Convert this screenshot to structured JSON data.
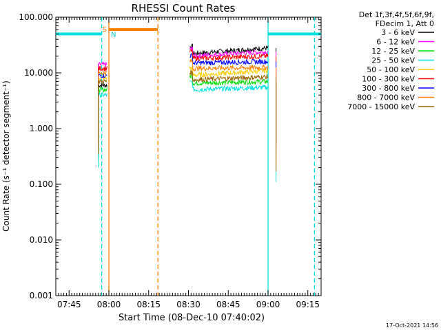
{
  "chart_data": {
    "type": "line",
    "title": "RHESSI Count Rates",
    "xlabel": "Start Time (08-Dec-10 07:40:02)",
    "ylabel": "Count Rate (s⁻¹ detector segment⁻¹)",
    "yscale": "log",
    "ylim": [
      0.001,
      100
    ],
    "xlim_minutes": [
      0,
      100
    ],
    "x_unit": "minutes after 07:40:00",
    "x_ticks": [
      {
        "minute": 5,
        "label": "07:45"
      },
      {
        "minute": 20,
        "label": "08:00"
      },
      {
        "minute": 35,
        "label": "08:15"
      },
      {
        "minute": 50,
        "label": "08:30"
      },
      {
        "minute": 65,
        "label": "08:45"
      },
      {
        "minute": 80,
        "label": "09:00"
      },
      {
        "minute": 95,
        "label": "09:15"
      }
    ],
    "y_ticks": [
      {
        "value": 100,
        "label": "100.000"
      },
      {
        "value": 10,
        "label": "10.000"
      },
      {
        "value": 1,
        "label": "1.000"
      },
      {
        "value": 0.1,
        "label": "0.100"
      },
      {
        "value": 0.01,
        "label": "0.010"
      },
      {
        "value": 0.001,
        "label": "0.001"
      }
    ],
    "legend": {
      "placement": "right",
      "header_lines": [
        "Det 1f,3f,4f,5f,6f,9f,",
        "FDecim 1, Att 0"
      ]
    },
    "series": [
      {
        "name": "3 - 6 keV",
        "color": "#000000",
        "segments": [
          {
            "from": 16.0,
            "to": 19.3,
            "value": 6.0
          },
          {
            "from": 50.5,
            "to": 80.0,
            "value": 22.0,
            "end_value": 28.0
          }
        ]
      },
      {
        "name": "6 - 12 keV",
        "color": "#ff00ff",
        "segments": [
          {
            "from": 16.0,
            "to": 19.3,
            "value": 14.0
          },
          {
            "from": 50.5,
            "to": 80.0,
            "value": 20.0,
            "end_value": 24.0
          }
        ]
      },
      {
        "name": "12 - 25 keV",
        "color": "#00dd00",
        "segments": [
          {
            "from": 16.0,
            "to": 19.3,
            "value": 5.0
          },
          {
            "from": 50.5,
            "to": 80.0,
            "value": 6.5,
            "end_value": 7.0
          }
        ]
      },
      {
        "name": "25 - 50 keV",
        "color": "#00e0e0",
        "segments": [
          {
            "from": 16.0,
            "to": 19.3,
            "value": 4.0
          },
          {
            "from": 50.5,
            "to": 80.0,
            "value": 5.0,
            "end_value": 5.5
          }
        ]
      },
      {
        "name": "50 - 100 keV",
        "color": "#ffcc00",
        "segments": [
          {
            "from": 16.0,
            "to": 19.3,
            "value": 8.0
          },
          {
            "from": 50.5,
            "to": 80.0,
            "value": 9.0,
            "end_value": 11.0
          }
        ]
      },
      {
        "name": "100 - 300 keV",
        "color": "#ff0000",
        "segments": [
          {
            "from": 16.0,
            "to": 19.3,
            "value": 12.0
          },
          {
            "from": 50.5,
            "to": 80.0,
            "value": 18.0,
            "end_value": 20.0
          }
        ]
      },
      {
        "name": "300 - 800 keV",
        "color": "#0000ff",
        "segments": [
          {
            "from": 16.0,
            "to": 19.3,
            "value": 9.0
          },
          {
            "from": 50.5,
            "to": 80.0,
            "value": 15.0,
            "end_value": 16.0
          }
        ]
      },
      {
        "name": "800 - 7000 keV",
        "color": "#ff8000",
        "segments": [
          {
            "from": 16.0,
            "to": 19.3,
            "value": 10.0
          },
          {
            "from": 50.5,
            "to": 80.0,
            "value": 12.0,
            "end_value": 12.5
          }
        ]
      },
      {
        "name": "7000 - 15000 keV",
        "color": "#996600",
        "segments": [
          {
            "from": 16.0,
            "to": 19.3,
            "value": 7.0
          },
          {
            "from": 50.5,
            "to": 80.0,
            "value": 7.5,
            "end_value": 8.5
          }
        ]
      }
    ],
    "flag_bars": [
      {
        "label": "night",
        "color": "#00e0e0",
        "from": 0,
        "to": 17.3,
        "value": 50
      },
      {
        "label": "night",
        "color": "#00e0e0",
        "from": 80.0,
        "to": 100,
        "value": 50
      },
      {
        "label": "SAA",
        "color": "#ff8000",
        "from": 20.0,
        "to": 38.5,
        "value": 60
      }
    ],
    "vlines": [
      {
        "minute": 17.3,
        "color": "#00e0e0",
        "style": "dashed"
      },
      {
        "minute": 20.0,
        "color": "#ff8000",
        "style": "solid"
      },
      {
        "minute": 38.5,
        "color": "#ff8000",
        "style": "dashed"
      },
      {
        "minute": 80.0,
        "color": "#00e0e0",
        "style": "solid"
      },
      {
        "minute": 97.5,
        "color": "#00e0e0",
        "style": "dashed"
      }
    ],
    "markers": [
      {
        "text": "S",
        "minute": 20.0,
        "value": 60,
        "color": "#ff8000"
      },
      {
        "text": "N",
        "minute": 20.0,
        "value": 50,
        "color": "#00c0c0"
      }
    ]
  },
  "timestamp": "17-Oct-2021 14:56"
}
